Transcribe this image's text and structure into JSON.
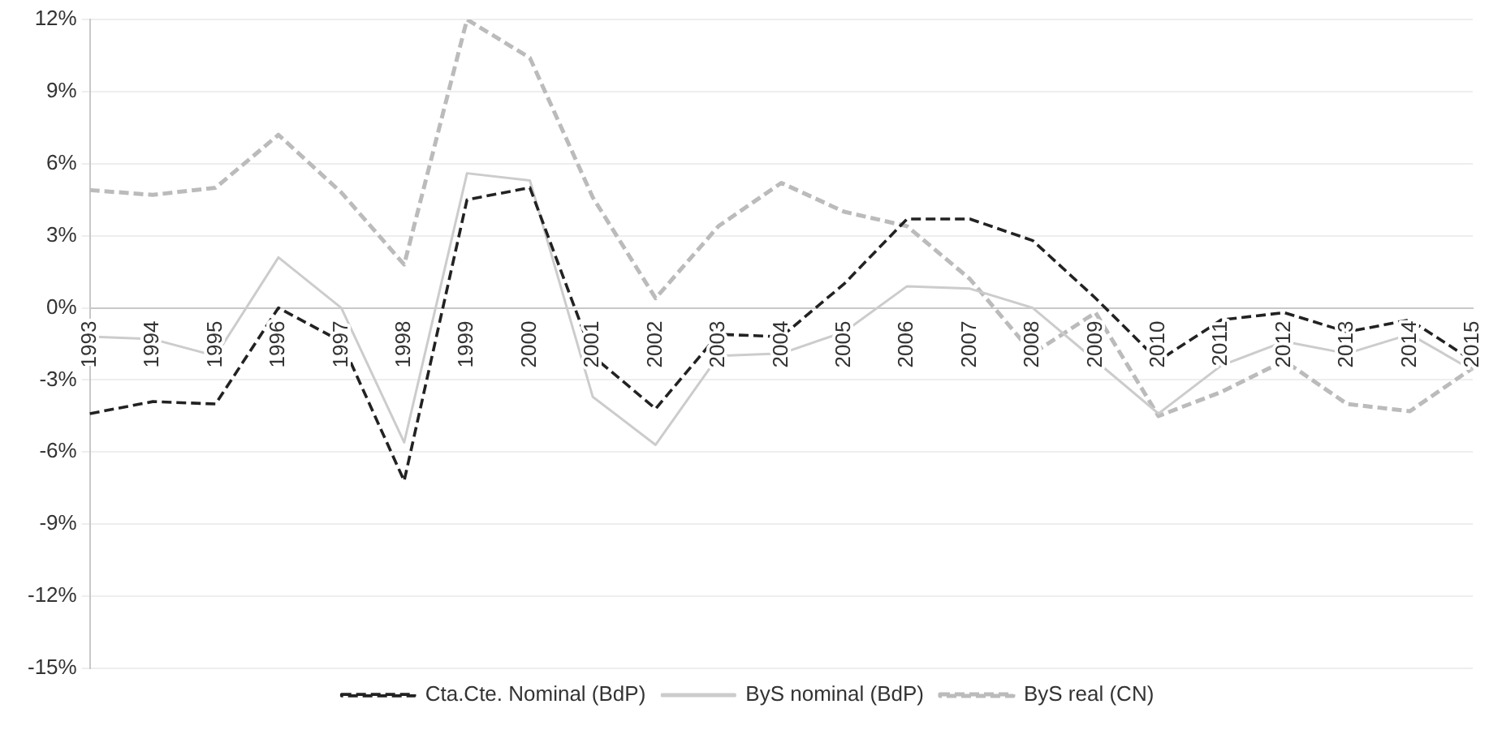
{
  "chart_data": {
    "type": "line",
    "categories": [
      "1993",
      "1994",
      "1995",
      "1996",
      "1997",
      "1998",
      "1999",
      "2000",
      "2001",
      "2002",
      "2003",
      "2004",
      "2005",
      "2006",
      "2007",
      "2008",
      "2009",
      "2010",
      "2011",
      "2012",
      "2013",
      "2014",
      "2015"
    ],
    "series": [
      {
        "name": "Cta.Cte. Nominal (BdP)",
        "color": "#222222",
        "line_style": "dashed",
        "values": [
          -4.4,
          -3.9,
          -4.0,
          0.0,
          -1.4,
          -7.2,
          4.5,
          5.0,
          -2.0,
          -4.2,
          -1.1,
          -1.2,
          1.0,
          3.7,
          3.7,
          2.8,
          0.4,
          -2.2,
          -0.5,
          -0.2,
          -1.0,
          -0.5,
          -2.2
        ]
      },
      {
        "name": "ByS nominal (BdP)",
        "color": "#cccccc",
        "line_style": "solid",
        "values": [
          -1.2,
          -1.3,
          -2.0,
          2.1,
          0.0,
          -5.6,
          5.6,
          5.3,
          -3.7,
          -5.7,
          -2.0,
          -1.9,
          -1.0,
          0.9,
          0.8,
          0.0,
          -2.2,
          -4.4,
          -2.4,
          -1.4,
          -1.9,
          -1.1,
          -2.6
        ]
      },
      {
        "name": "ByS real (CN)",
        "color": "#bbbbbb",
        "line_style": "dashed",
        "values": [
          4.9,
          4.7,
          5.0,
          7.2,
          4.8,
          1.8,
          12.0,
          10.4,
          4.6,
          0.4,
          3.4,
          5.2,
          4.0,
          3.4,
          1.2,
          -1.9,
          -0.2,
          -4.5,
          -3.5,
          -2.2,
          -4.0,
          -4.3,
          -2.5
        ]
      }
    ],
    "ylim": [
      -15,
      12
    ],
    "yticks": [
      {
        "value": -15,
        "label": "-15%"
      },
      {
        "value": -12,
        "label": "-12%"
      },
      {
        "value": -9,
        "label": "-9%"
      },
      {
        "value": -6,
        "label": "-6%"
      },
      {
        "value": -3,
        "label": "-3%"
      },
      {
        "value": 0,
        "label": "0%"
      },
      {
        "value": 3,
        "label": "3%"
      },
      {
        "value": 6,
        "label": "6%"
      },
      {
        "value": 9,
        "label": "9%"
      },
      {
        "value": 12,
        "label": "12%"
      }
    ],
    "grid": "y",
    "legend": "bottom",
    "marker": "none"
  }
}
